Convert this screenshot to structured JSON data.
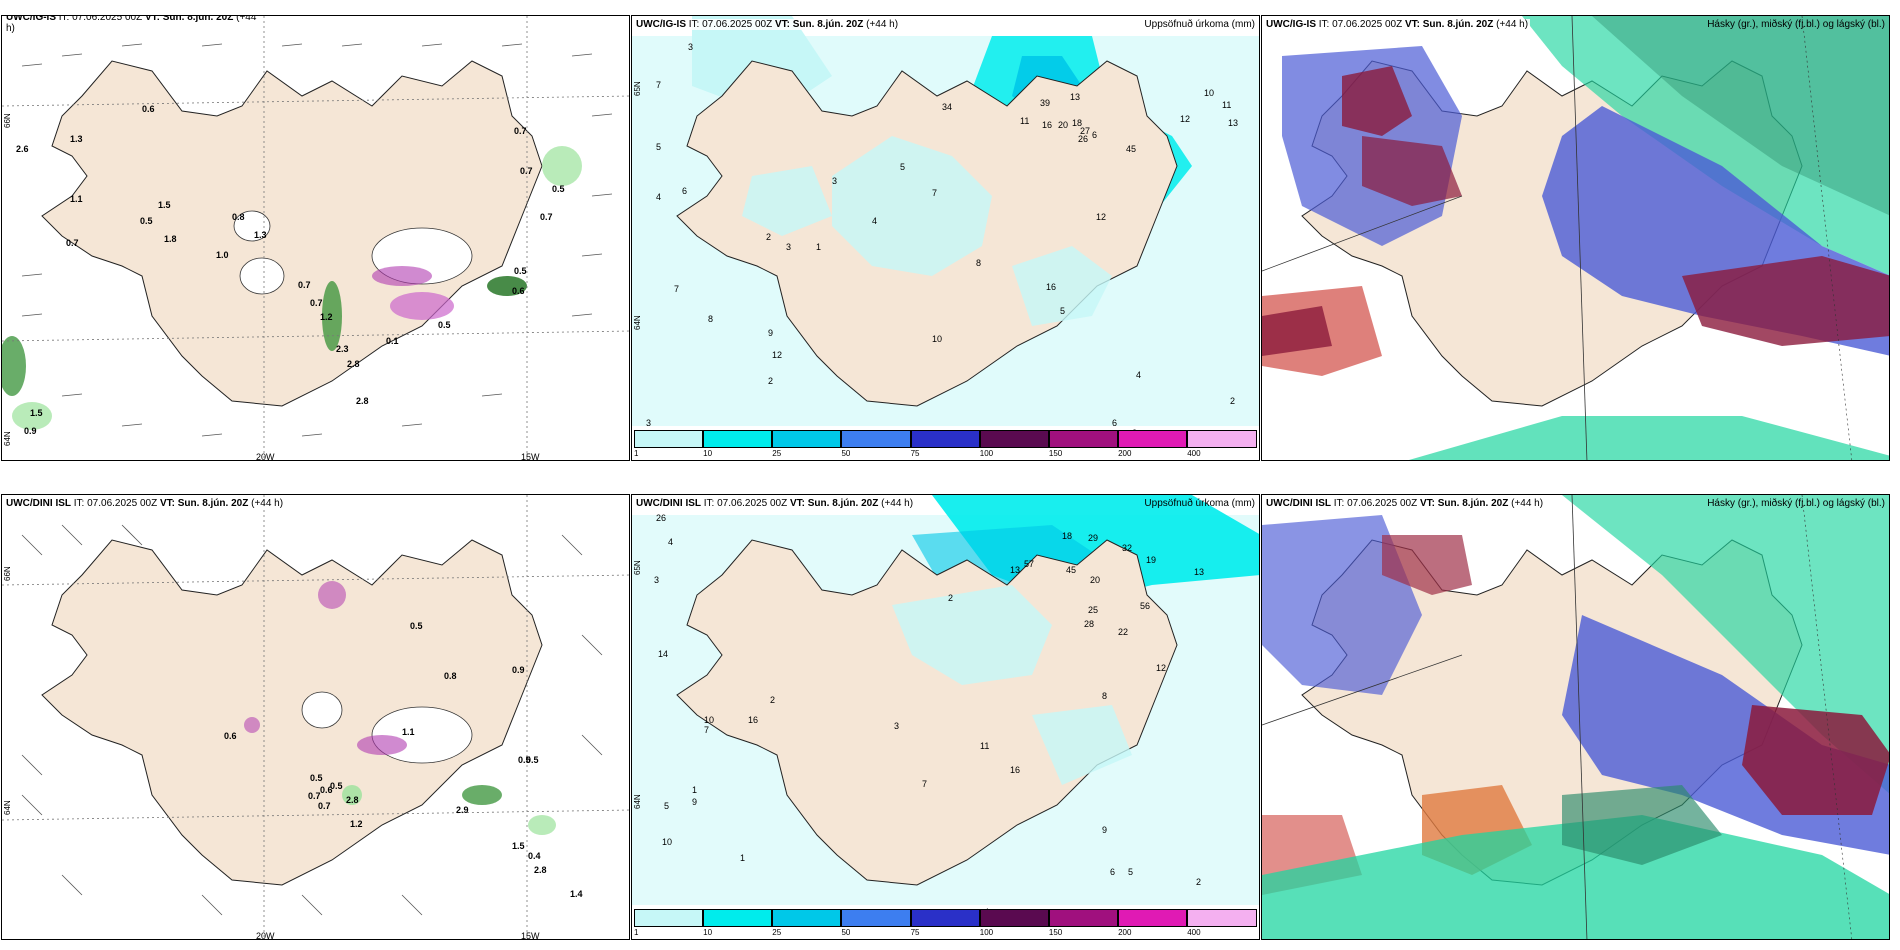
{
  "colors": {
    "land": "#f5e6d6",
    "precip_light": "#c6f7f7",
    "cyan": "#00ecec",
    "teal": "#00c8e8",
    "cloud_high_green": "#1fd6a0",
    "cloud_mid_blue": "#4b5bd6",
    "cloud_low_red": "#8b1a3c"
  },
  "panels": [
    {
      "model": "UWC/IG-IS",
      "it": "IT: 07.06.2025 00Z",
      "vt": "VT: Sun. 8.jún. 20Z",
      "lead": "(+44",
      "lead2": "h)",
      "right": "",
      "lats": [
        "66N",
        "64N"
      ],
      "lons": [
        "20W",
        "15W"
      ]
    },
    {
      "model": "UWC/IG-IS",
      "it": "IT: 07.06.2025 00Z",
      "vt": "VT: Sun. 8.jún. 20Z",
      "lead": "(+44 h)",
      "right": "Uppsöfnuð úrkoma (mm)",
      "lats": [
        "65N",
        "64N"
      ],
      "lons": []
    },
    {
      "model": "UWC/IG-IS",
      "it": "IT: 07.06.2025 00Z",
      "vt": "VT: Sun. 8.jún. 20Z",
      "lead": "(+44 h)",
      "right": "Hásky (gr.), miðský (fj.bl.) og lágský (bl.)",
      "lats": [],
      "lons": []
    },
    {
      "model": "UWC/DINI ISL",
      "it": "IT: 07.06.2025 00Z",
      "vt": "VT: Sun. 8.jún. 20Z",
      "lead": "(+44 h)",
      "right": "",
      "lats": [
        "66N",
        "64N"
      ],
      "lons": [
        "20W",
        "15W"
      ]
    },
    {
      "model": "UWC/DINI ISL",
      "it": "IT: 07.06.2025 00Z",
      "vt": "VT: Sun. 8.jún. 20Z",
      "lead": "(+44 h)",
      "right": "Uppsöfnuð úrkoma (mm)",
      "lats": [
        "65N",
        "64N"
      ],
      "lons": []
    },
    {
      "model": "UWC/DINI ISL",
      "it": "IT: 07.06.2025 00Z",
      "vt": "VT: Sun. 8.jún. 20Z",
      "lead": "(+44 h)",
      "right": "Hásky (gr.), miðský (fj.bl.) og lágský (bl.)",
      "lats": [],
      "lons": []
    }
  ],
  "colorbar": {
    "ticks": [
      "1",
      "10",
      "25",
      "50",
      "75",
      "100",
      "150",
      "200",
      "400"
    ],
    "colors": [
      "#c6f7f7",
      "#00ecec",
      "#00c8e8",
      "#3d7ef0",
      "#2a30c8",
      "#5a0a50",
      "#a0107e",
      "#e01ab4",
      "#f4b0f0"
    ]
  },
  "precip_labels_top": [
    "3",
    "7",
    "5",
    "6",
    "4",
    "8",
    "7",
    "9",
    "12",
    "2",
    "34",
    "39",
    "13",
    "26",
    "45",
    "12",
    "10",
    "11",
    "13",
    "16",
    "18",
    "6",
    "11",
    "2",
    "3",
    "1",
    "3",
    "4",
    "5",
    "7",
    "10",
    "20",
    "27",
    "16",
    "5",
    "8",
    "12",
    "2",
    "6",
    "11",
    "4",
    "2",
    "3"
  ],
  "precip_labels_bottom": [
    "26",
    "4",
    "3",
    "14",
    "16",
    "10",
    "2",
    "1",
    "5",
    "9",
    "7",
    "10",
    "2",
    "13",
    "28",
    "57",
    "45",
    "18",
    "29",
    "32",
    "19",
    "13",
    "20",
    "25",
    "56",
    "22",
    "12",
    "8",
    "11",
    "16",
    "3",
    "7",
    "9",
    "6",
    "5",
    "2",
    "1",
    "4"
  ],
  "cloud_labels_top": [
    "0.6",
    "2.6",
    "1.3",
    "1.1",
    "0.7",
    "1.5",
    "0.5",
    "1.8",
    "0.8",
    "1.0",
    "1.3",
    "0.7",
    "1.2",
    "0.7",
    "0.5",
    "0.6",
    "0.5",
    "0.7",
    "2.3",
    "2.8",
    "1.5",
    "0.9",
    "2.8",
    "0.1",
    "0.7",
    "0.7",
    "0.5"
  ],
  "cloud_labels_bottom": [
    "0.6",
    "0.5",
    "0.7",
    "0.8",
    "0.5",
    "0.6",
    "0.5",
    "0.7",
    "2.8",
    "1.2",
    "1.1",
    "0.9",
    "0.5",
    "1.5",
    "0.4",
    "2.8",
    "2.9",
    "1.4",
    "0.5"
  ]
}
